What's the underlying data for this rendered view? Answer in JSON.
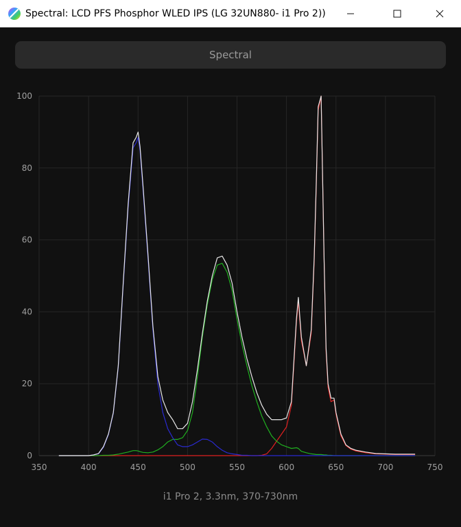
{
  "window": {
    "title": "Spectral: LCD PFS Phosphor WLED IPS (LG 32UN880-   i1 Pro 2))",
    "minimize_icon": "minimize-icon",
    "maximize_icon": "maximize-icon",
    "close_icon": "close-icon",
    "app_icon": "color-wheel-icon"
  },
  "mode_button": {
    "label": "Spectral"
  },
  "footer": {
    "label": "i1 Pro 2, 3.3nm, 370-730nm"
  },
  "colors": {
    "background": "#111111",
    "grid": "#262626",
    "axis": "#3a3a3a",
    "total": "#e8e8e8",
    "red": "#e02020",
    "green": "#20b020",
    "blue": "#2a2ad0"
  },
  "chart_data": {
    "type": "line",
    "title": "",
    "xlabel": "",
    "ylabel": "",
    "xlim": [
      350,
      750
    ],
    "ylim": [
      0,
      100
    ],
    "x_ticks": [
      350,
      400,
      450,
      500,
      550,
      600,
      650,
      700,
      750
    ],
    "y_ticks": [
      0,
      20,
      40,
      60,
      80,
      100
    ],
    "grid": true,
    "x": [
      370,
      380,
      390,
      400,
      405,
      410,
      415,
      420,
      425,
      430,
      435,
      440,
      445,
      448,
      450,
      452,
      455,
      460,
      465,
      470,
      475,
      480,
      485,
      490,
      495,
      500,
      505,
      510,
      515,
      520,
      525,
      530,
      535,
      540,
      545,
      550,
      555,
      560,
      565,
      570,
      575,
      580,
      585,
      590,
      595,
      600,
      605,
      610,
      612,
      615,
      620,
      625,
      628,
      630,
      632,
      635,
      638,
      640,
      642,
      645,
      648,
      650,
      655,
      660,
      665,
      670,
      680,
      690,
      700,
      710,
      720,
      730
    ],
    "series": [
      {
        "color": "#e8e8e8",
        "values": [
          0,
          0,
          0,
          0,
          0.2,
          0.6,
          2.5,
          6,
          12,
          25,
          48,
          70,
          87,
          88.5,
          90,
          86,
          75,
          56,
          36,
          22,
          15.5,
          12,
          10,
          7.5,
          7.5,
          9,
          15,
          24,
          34,
          43,
          50,
          55,
          55.5,
          53,
          48,
          40,
          33,
          27,
          22,
          17.5,
          14,
          11.5,
          10,
          10,
          10,
          10.5,
          15,
          38,
          44,
          33,
          25,
          35,
          55,
          75,
          97,
          100,
          55,
          30,
          20,
          16,
          16,
          12,
          6,
          3,
          2,
          1.5,
          1,
          0.6,
          0.5,
          0.4,
          0.4,
          0.4
        ]
      },
      {
        "color": "#e02020",
        "values": [
          0,
          0,
          0,
          0,
          0,
          0,
          0,
          0,
          0,
          0,
          0,
          0,
          0,
          0,
          0,
          0,
          0,
          0,
          0,
          0,
          0,
          0,
          0,
          0,
          0,
          0,
          0,
          0,
          0,
          0,
          0,
          0,
          0,
          0,
          0,
          0,
          0,
          0,
          0,
          0,
          0.1,
          0.5,
          2,
          4,
          6,
          8,
          14,
          37,
          43,
          32,
          25,
          34,
          54,
          74,
          96,
          100,
          55,
          29,
          19,
          15,
          15.5,
          11.5,
          5.5,
          2.8,
          1.8,
          1.3,
          0.8,
          0.5,
          0.4,
          0.3,
          0.3,
          0.3
        ]
      },
      {
        "color": "#20b020",
        "values": [
          0,
          0,
          0,
          0,
          0,
          0,
          0.1,
          0.1,
          0.2,
          0.4,
          0.7,
          1,
          1.4,
          1.4,
          1.3,
          1.1,
          0.9,
          0.8,
          1,
          1.6,
          2.5,
          3.8,
          4.5,
          4.5,
          5,
          7,
          12,
          22,
          33,
          42,
          49,
          53,
          53.5,
          51,
          46,
          38,
          31,
          25,
          19.5,
          15,
          11,
          8,
          5.5,
          4,
          3,
          2.5,
          2,
          2.2,
          2,
          1.2,
          0.8,
          0.5,
          0.4,
          0.3,
          0.3,
          0.3,
          0.2,
          0.2,
          0.1,
          0.1,
          0,
          0,
          0,
          0,
          0,
          0,
          0,
          0,
          0,
          0,
          0,
          0
        ]
      },
      {
        "color": "#2a2ad0",
        "values": [
          0,
          0,
          0,
          0,
          0.2,
          0.5,
          2.3,
          5.8,
          11.8,
          24.6,
          47.3,
          69,
          85.6,
          87,
          88.5,
          85,
          74,
          55,
          35,
          20,
          12,
          7.5,
          5,
          3,
          2.5,
          2.5,
          3,
          3.8,
          4.6,
          4.5,
          3.8,
          2.5,
          1.5,
          0.8,
          0.5,
          0.3,
          0.1,
          0.1,
          0,
          0,
          0,
          0,
          0,
          0,
          0,
          0,
          0,
          0,
          0,
          0,
          0,
          0,
          0,
          0,
          0,
          0,
          0,
          0,
          0,
          0,
          0,
          0,
          0,
          0,
          0,
          0,
          0,
          0,
          0,
          0,
          0,
          0
        ]
      }
    ]
  }
}
